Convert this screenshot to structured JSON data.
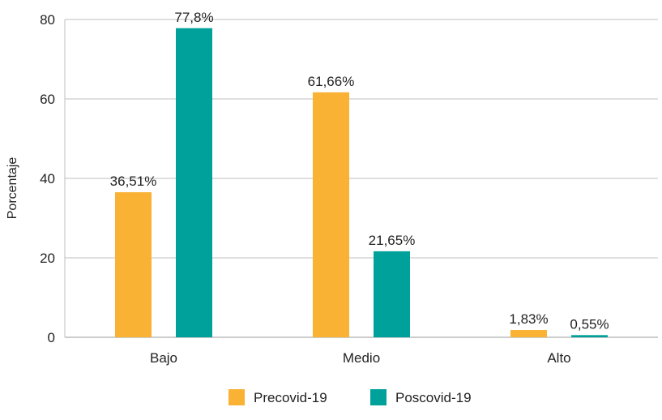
{
  "chart_data": {
    "type": "bar",
    "title": "",
    "xlabel": "",
    "ylabel": "Porcentaje",
    "ylim": [
      0,
      80
    ],
    "yticks": [
      0,
      20,
      40,
      60,
      80
    ],
    "grid": true,
    "legend_position": "bottom-center",
    "categories": [
      "Bajo",
      "Medio",
      "Alto"
    ],
    "series": [
      {
        "name": "Precovid-19",
        "color": "#f9b234",
        "values": [
          36.51,
          61.66,
          1.83
        ],
        "labels": [
          "36,51%",
          "61,66%",
          "1,83%"
        ]
      },
      {
        "name": "Poscovid-19",
        "color": "#00a19a",
        "values": [
          77.8,
          21.65,
          0.55
        ],
        "labels": [
          "77,8%",
          "21,65%",
          "0,55%"
        ]
      }
    ]
  }
}
